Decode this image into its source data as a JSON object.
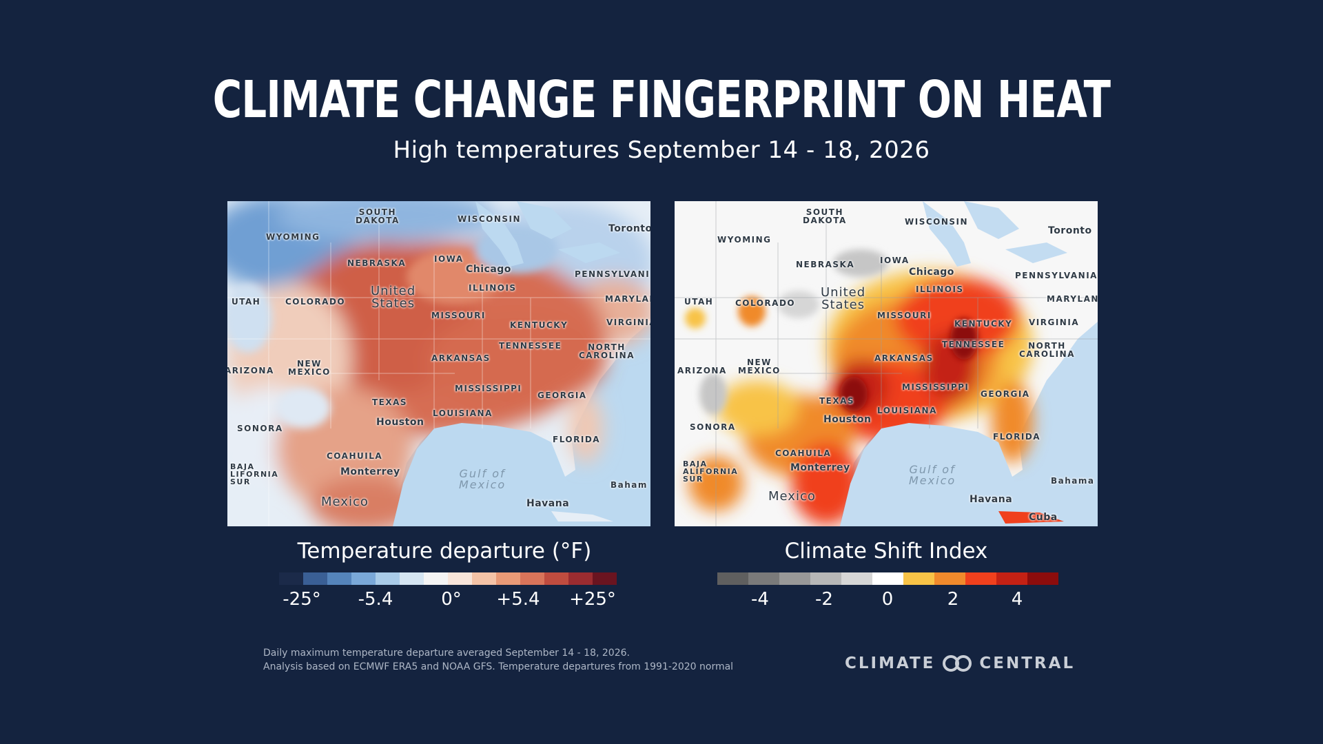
{
  "header": {
    "title": "CLIMATE CHANGE FINGERPRINT ON HEAT",
    "subtitle": "High temperatures September 14 - 18, 2026"
  },
  "map_left": {
    "labels": {
      "south_dakota": "SOUTH\nDAKOTA",
      "wisconsin": "WISCONSIN",
      "toronto": "Toronto",
      "wyoming": "WYOMING",
      "iowa": "IOWA",
      "nebraska": "NEBRASKA",
      "chicago": "Chicago",
      "pennsylvania": "PENNSYLVANI",
      "illinois": "ILLINOIS",
      "utah": "UTAH",
      "colorado": "COLORADO",
      "united_states": "United\nStates",
      "maryland": "MARYLAN",
      "missouri": "MISSOURI",
      "kentucky": "KENTUCKY",
      "virginia": "VIRGINIA",
      "tennessee": "TENNESSEE",
      "north_carolina": "NORTH\nCAROLINA",
      "arizona": "ARIZONA",
      "new_mexico": "NEW\nMEXICO",
      "arkansas": "ARKANSAS",
      "mississippi": "MISSISSIPPI",
      "georgia": "GEORGIA",
      "texas": "TEXAS",
      "louisiana": "LOUISIANA",
      "houston": "Houston",
      "sonora": "SONORA",
      "florida": "FLORIDA",
      "coahuila": "COAHUILA",
      "baja": "BAJA\nLIFORNIA\nSUR",
      "monterrey": "Monterrey",
      "gulf": "Gulf of\nMexico",
      "bahamas": "Baham",
      "mexico": "Mexico",
      "havana": "Havana"
    }
  },
  "map_right": {
    "labels": {
      "south_dakota": "SOUTH\nDAKOTA",
      "wisconsin": "WISCONSIN",
      "toronto": "Toronto",
      "wyoming": "WYOMING",
      "iowa": "IOWA",
      "nebraska": "NEBRASKA",
      "chicago": "Chicago",
      "pennsylvania": "PENNSYLVANIA",
      "illinois": "ILLINOIS",
      "utah": "UTAH",
      "colorado": "COLORADO",
      "united_states": "United\nStates",
      "maryland": "MARYLAND",
      "missouri": "MISSOURI",
      "kentucky": "KENTUCKY",
      "virginia": "VIRGINIA",
      "tennessee": "TENNESSEE",
      "north_carolina": "NORTH\nCAROLINA",
      "arizona": "ARIZONA",
      "new_mexico": "NEW\nMEXICO",
      "arkansas": "ARKANSAS",
      "mississippi": "MISSISSIPPI",
      "georgia": "GEORGIA",
      "texas": "TEXAS",
      "louisiana": "LOUISIANA",
      "houston": "Houston",
      "sonora": "SONORA",
      "florida": "FLORIDA",
      "coahuila": "COAHUILA",
      "baja": "BAJA\nALIFORNIA\nSUR",
      "monterrey": "Monterrey",
      "gulf": "Gulf of\nMexico",
      "bahamas": "Bahama",
      "mexico": "Mexico",
      "havana": "Havana",
      "cuba": "Cuba"
    }
  },
  "legend_left": {
    "title": "Temperature departure (°F)",
    "colors": [
      "#1b2a49",
      "#3a5f95",
      "#5584bb",
      "#7aa8d8",
      "#a9cbe8",
      "#d5e5f2",
      "#f4f4f4",
      "#f8e5da",
      "#f4c3a7",
      "#e99a77",
      "#d9745a",
      "#bf4c3f",
      "#9b2c30",
      "#6a1420"
    ],
    "ticks": [
      "-25°",
      "-5.4",
      "0°",
      "+5.4",
      "+25°"
    ]
  },
  "legend_right": {
    "title": "Climate Shift Index",
    "colors": [
      "#5f5f5f",
      "#7a7a7a",
      "#989898",
      "#b7b7b7",
      "#d6d6d6",
      "#ffffff",
      "#f8c347",
      "#f08a2c",
      "#f0401d",
      "#c42114",
      "#8c0c0c"
    ],
    "ticks": [
      "-4",
      "-2",
      "0",
      "2",
      "4"
    ]
  },
  "footnote": {
    "line1": "Daily maximum temperature departure averaged September 14 - 18, 2026.",
    "line2": "Analysis based on ECMWF ERA5 and NOAA GFS. Temperature departures from 1991-2020 normal"
  },
  "logo": {
    "left": "CLIMATE",
    "right": "CENTRAL"
  }
}
